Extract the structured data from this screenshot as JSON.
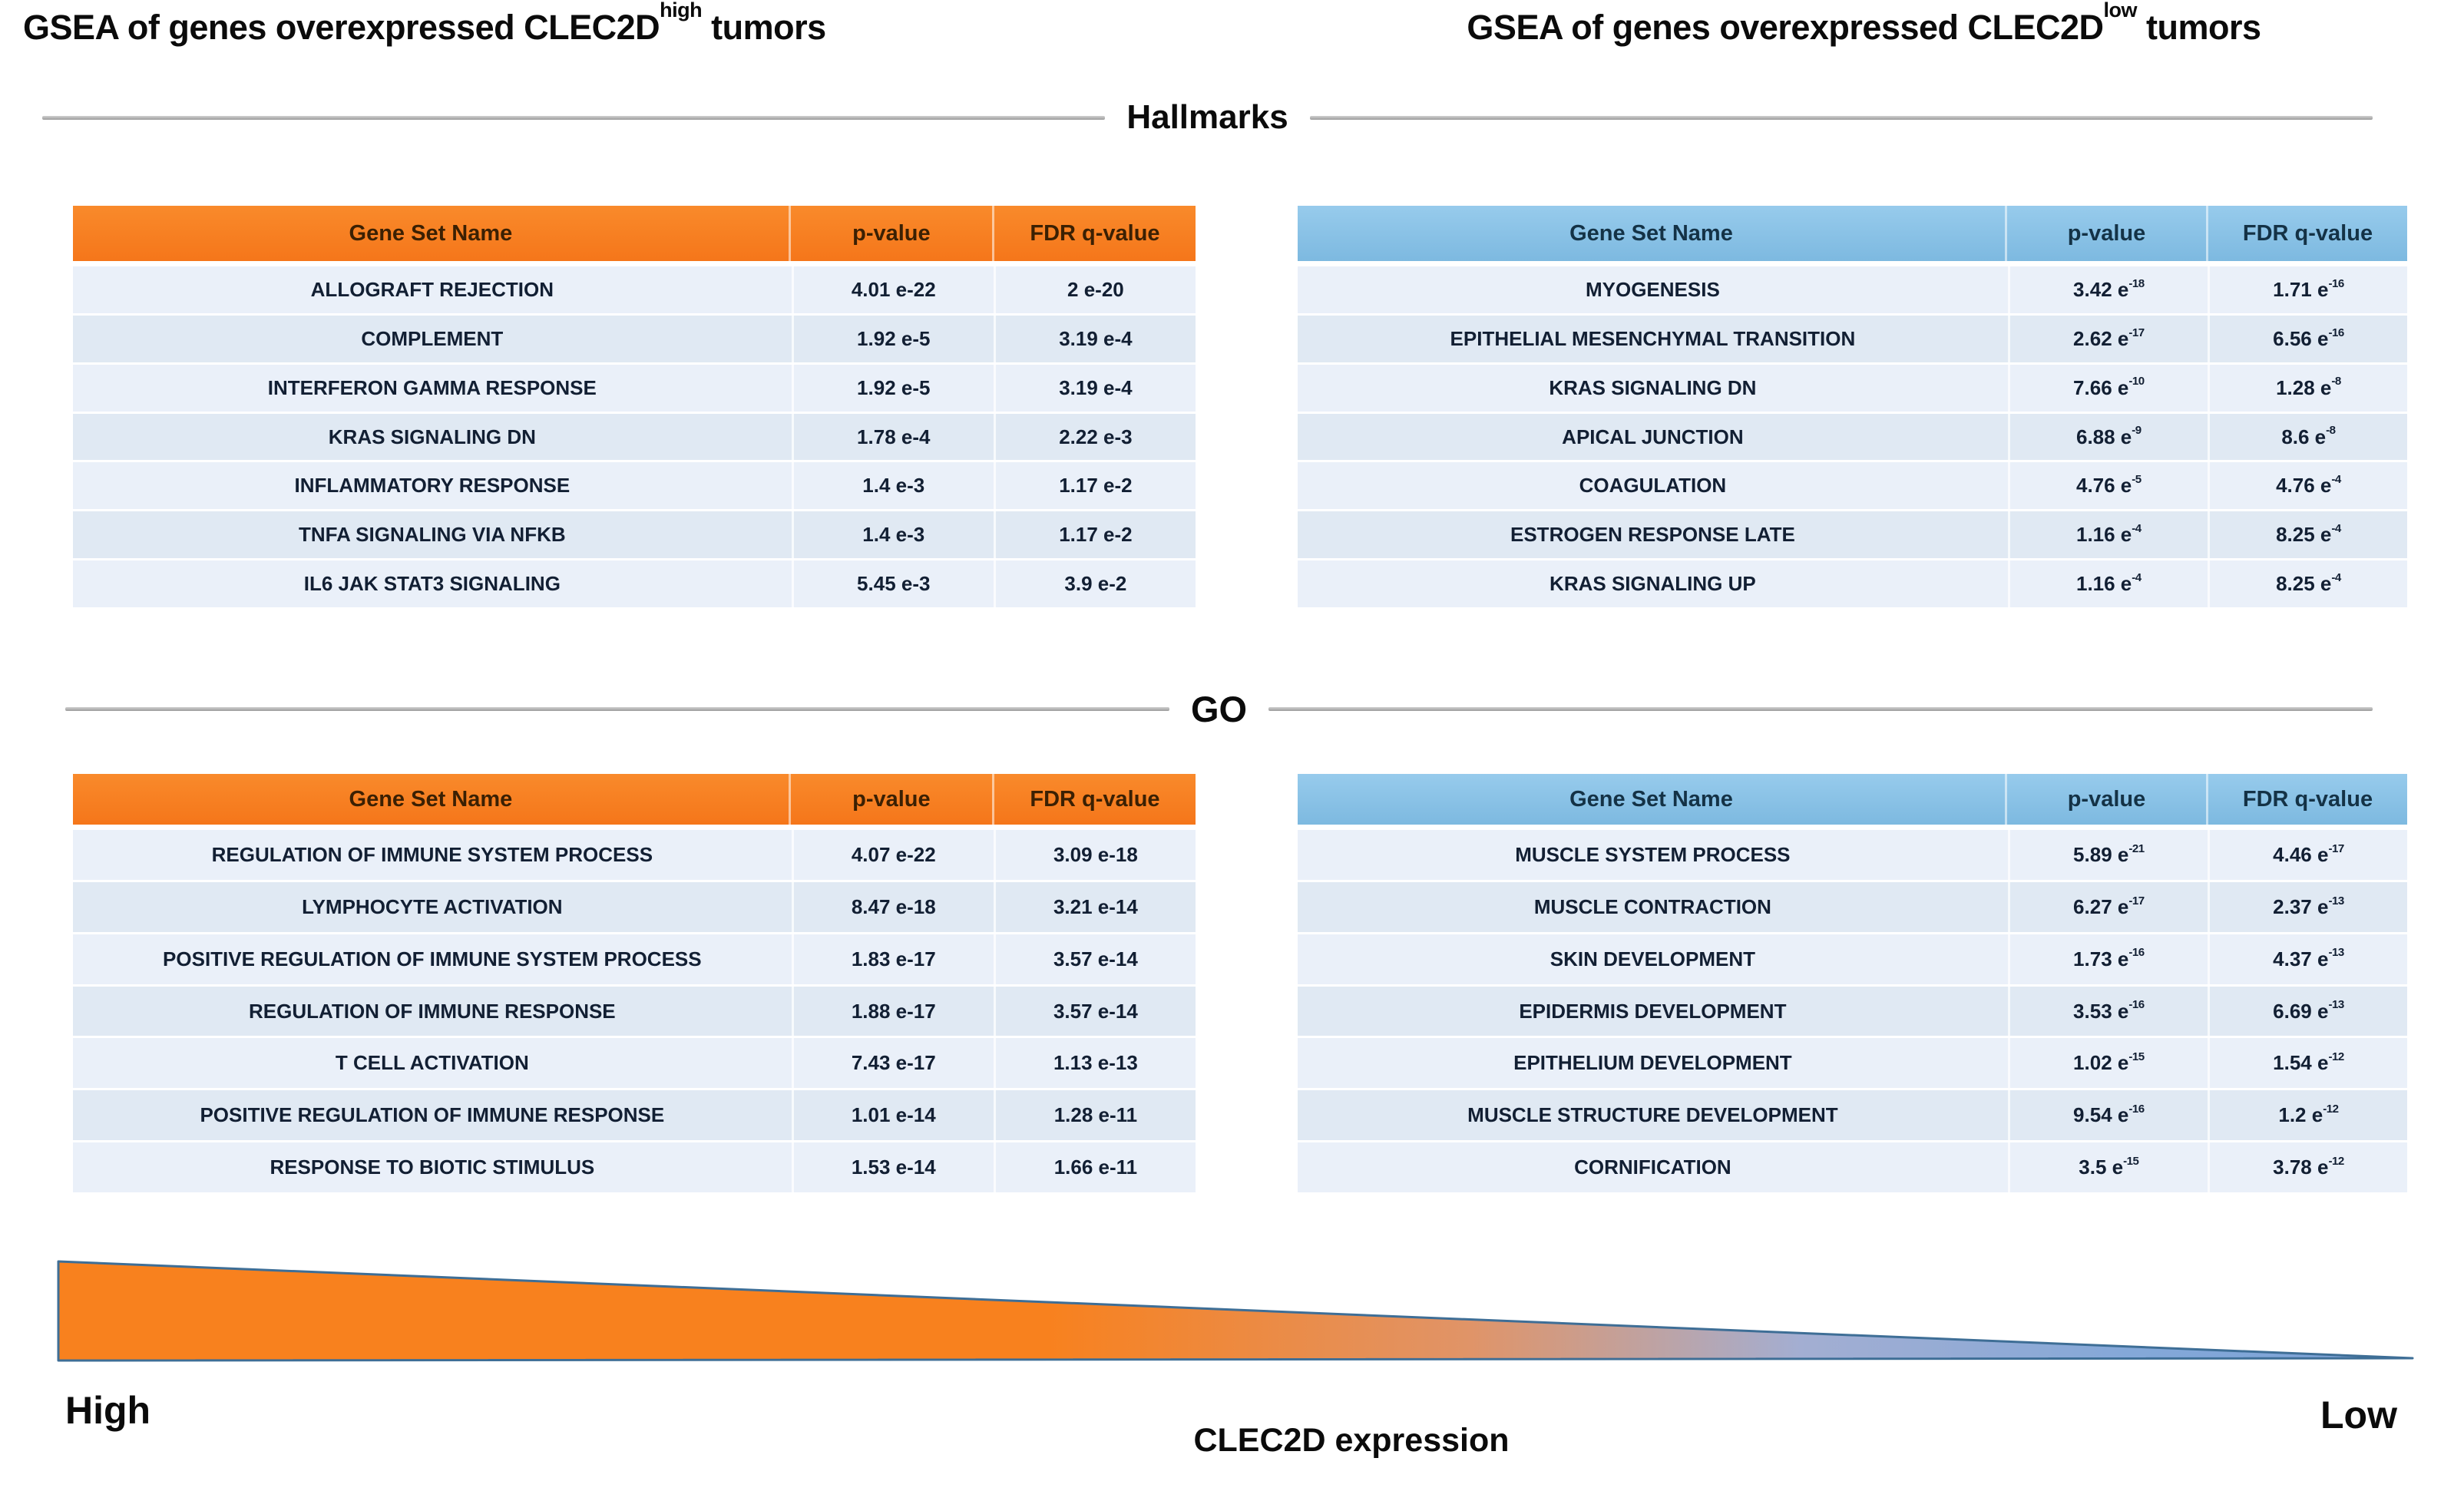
{
  "titles": {
    "left": {
      "prefix": "GSEA of genes overexpressed CLEC2D",
      "sup": "high",
      "suffix": " tumors"
    },
    "right": {
      "prefix": "GSEA of genes overexpressed CLEC2D",
      "sup": "low",
      "suffix": " tumors"
    }
  },
  "dividers": {
    "hallmarks": "Hallmarks",
    "go": "GO"
  },
  "tables": {
    "hallmark_high": {
      "group": "Hallmarks",
      "condition": "CLEC2D high tumors",
      "accent": "#f5791d",
      "exponent_style": "inline",
      "columns": [
        "Gene Set Name",
        "p-value",
        "FDR q-value"
      ],
      "rows": [
        {
          "name": "ALLOGRAFT REJECTION",
          "p": "4.01 e-22",
          "q": "2 e-20"
        },
        {
          "name": "COMPLEMENT",
          "p": "1.92 e-5",
          "q": "3.19 e-4"
        },
        {
          "name": "INTERFERON GAMMA RESPONSE",
          "p": "1.92 e-5",
          "q": "3.19 e-4"
        },
        {
          "name": "KRAS SIGNALING DN",
          "p": "1.78 e-4",
          "q": "2.22 e-3"
        },
        {
          "name": "INFLAMMATORY RESPONSE",
          "p": "1.4 e-3",
          "q": "1.17 e-2"
        },
        {
          "name": "TNFA SIGNALING VIA NFKB",
          "p": "1.4 e-3",
          "q": "1.17 e-2"
        },
        {
          "name": "IL6 JAK STAT3 SIGNALING",
          "p": "5.45 e-3",
          "q": "3.9 e-2"
        }
      ]
    },
    "hallmark_low": {
      "group": "Hallmarks",
      "condition": "CLEC2D low tumors",
      "accent": "#85c1e6",
      "exponent_style": "superscript",
      "columns": [
        "Gene Set Name",
        "p-value",
        "FDR q-value"
      ],
      "rows": [
        {
          "name": "MYOGENESIS",
          "p": "3.42 e-18",
          "q": "1.71 e-16"
        },
        {
          "name": "EPITHELIAL MESENCHYMAL TRANSITION",
          "p": "2.62 e-17",
          "q": "6.56 e-16"
        },
        {
          "name": "KRAS SIGNALING DN",
          "p": "7.66 e-10",
          "q": "1.28 e-8"
        },
        {
          "name": "APICAL JUNCTION",
          "p": "6.88 e-9",
          "q": "8.6 e-8"
        },
        {
          "name": "COAGULATION",
          "p": "4.76 e-5",
          "q": "4.76 e-4"
        },
        {
          "name": "ESTROGEN RESPONSE LATE",
          "p": "1.16 e-4",
          "q": "8.25 e-4"
        },
        {
          "name": "KRAS SIGNALING UP",
          "p": "1.16 e-4",
          "q": "8.25 e-4"
        }
      ]
    },
    "go_high": {
      "group": "GO",
      "condition": "CLEC2D high tumors",
      "accent": "#f5791d",
      "exponent_style": "inline",
      "columns": [
        "Gene Set Name",
        "p-value",
        "FDR q-value"
      ],
      "rows": [
        {
          "name": "REGULATION OF IMMUNE SYSTEM PROCESS",
          "p": "4.07 e-22",
          "q": "3.09 e-18"
        },
        {
          "name": "LYMPHOCYTE ACTIVATION",
          "p": "8.47 e-18",
          "q": "3.21 e-14"
        },
        {
          "name": "POSITIVE REGULATION OF IMMUNE SYSTEM PROCESS",
          "p": "1.83 e-17",
          "q": "3.57 e-14"
        },
        {
          "name": "REGULATION OF IMMUNE RESPONSE",
          "p": "1.88 e-17",
          "q": "3.57 e-14"
        },
        {
          "name": "T CELL ACTIVATION",
          "p": "7.43 e-17",
          "q": "1.13 e-13"
        },
        {
          "name": "POSITIVE REGULATION OF IMMUNE RESPONSE",
          "p": "1.01 e-14",
          "q": "1.28 e-11"
        },
        {
          "name": "RESPONSE TO BIOTIC STIMULUS",
          "p": "1.53 e-14",
          "q": "1.66 e-11"
        }
      ]
    },
    "go_low": {
      "group": "GO",
      "condition": "CLEC2D low tumors",
      "accent": "#85c1e6",
      "exponent_style": "superscript",
      "columns": [
        "Gene Set Name",
        "p-value",
        "FDR q-value"
      ],
      "rows": [
        {
          "name": "MUSCLE SYSTEM PROCESS",
          "p": "5.89 e-21",
          "q": "4.46 e-17"
        },
        {
          "name": "MUSCLE CONTRACTION",
          "p": "6.27 e-17",
          "q": "2.37 e-13"
        },
        {
          "name": "SKIN DEVELOPMENT",
          "p": "1.73 e-16",
          "q": "4.37 e-13"
        },
        {
          "name": "EPIDERMIS DEVELOPMENT",
          "p": "3.53 e-16",
          "q": "6.69 e-13"
        },
        {
          "name": "EPITHELIUM DEVELOPMENT",
          "p": "1.02 e-15",
          "q": "1.54 e-12"
        },
        {
          "name": "MUSCLE STRUCTURE DEVELOPMENT",
          "p": "9.54 e-16",
          "q": "1.2 e-12"
        },
        {
          "name": "CORNIFICATION",
          "p": "3.5 e-15",
          "q": "3.78 e-12"
        }
      ]
    }
  },
  "expression_gradient": {
    "high_label": "High",
    "low_label": "Low",
    "axis_label": "CLEC2D expression",
    "orange": "#f8811e",
    "blue": "#7ba2d6",
    "outline": "#3e6e96"
  },
  "colors": {
    "orange_header": "#f5791d",
    "blue_header": "#85c1e6",
    "row_light": "#eaf0f9",
    "row_dark": "#e0e9f3",
    "divider_line": "#b0b0b0",
    "cell_text": "#121f33"
  }
}
